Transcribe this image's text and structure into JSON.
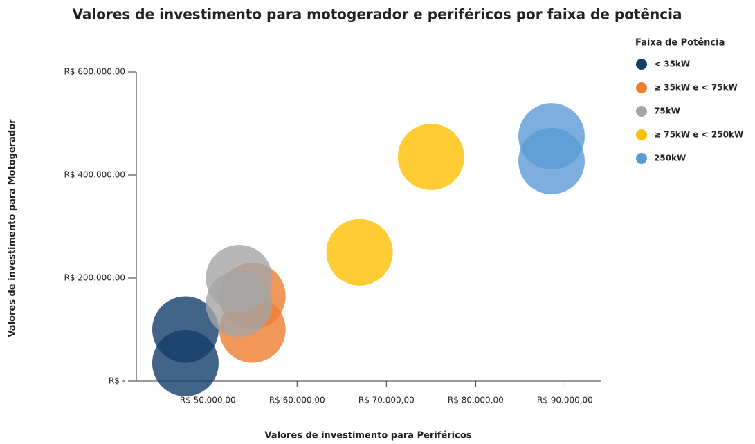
{
  "chart_data": {
    "type": "scatter",
    "title": "Valores de investimento para motogerador e periféricos por faixa de potência",
    "x_label": "Valores de investimento para Periféricos",
    "y_label": "Valores de investimento para Motogerador",
    "legend_title": "Faixa de Potência",
    "legend_position": "right",
    "xlim": [
      42000,
      94000
    ],
    "ylim": [
      0,
      600000
    ],
    "xticks": [
      {
        "value": 50000,
        "label": "R$ 50.000,00"
      },
      {
        "value": 60000,
        "label": "R$ 60.000,00"
      },
      {
        "value": 70000,
        "label": "R$ 70.000,00"
      },
      {
        "value": 80000,
        "label": "R$ 80.000,00"
      },
      {
        "value": 90000,
        "label": "R$ 90.000,00"
      }
    ],
    "yticks": [
      {
        "value": 0,
        "label": "R$ -"
      },
      {
        "value": 200000,
        "label": "R$ 200.000,00"
      },
      {
        "value": 400000,
        "label": "R$ 400.000,00"
      },
      {
        "value": 600000,
        "label": "R$ 600.000,00"
      }
    ],
    "series": [
      {
        "name": "< 35kW",
        "color": "#123d6a",
        "x": [
          47500,
          47500
        ],
        "values": [
          35000,
          100000
        ]
      },
      {
        "name": "≥ 35kW e < 75kW",
        "color": "#ed7d31",
        "x": [
          55000,
          55000
        ],
        "values": [
          100000,
          165000
        ]
      },
      {
        "name": "75kW",
        "color": "#a5a5a5",
        "x": [
          53500,
          53500
        ],
        "values": [
          150000,
          200000
        ]
      },
      {
        "name": "≥ 75kW e < 250kW",
        "color": "#ffc000",
        "x": [
          67000,
          75000
        ],
        "values": [
          250000,
          435000
        ]
      },
      {
        "name": "250kW",
        "color": "#5b9bd5",
        "x": [
          88500,
          88500
        ],
        "values": [
          427000,
          475000
        ]
      }
    ]
  }
}
